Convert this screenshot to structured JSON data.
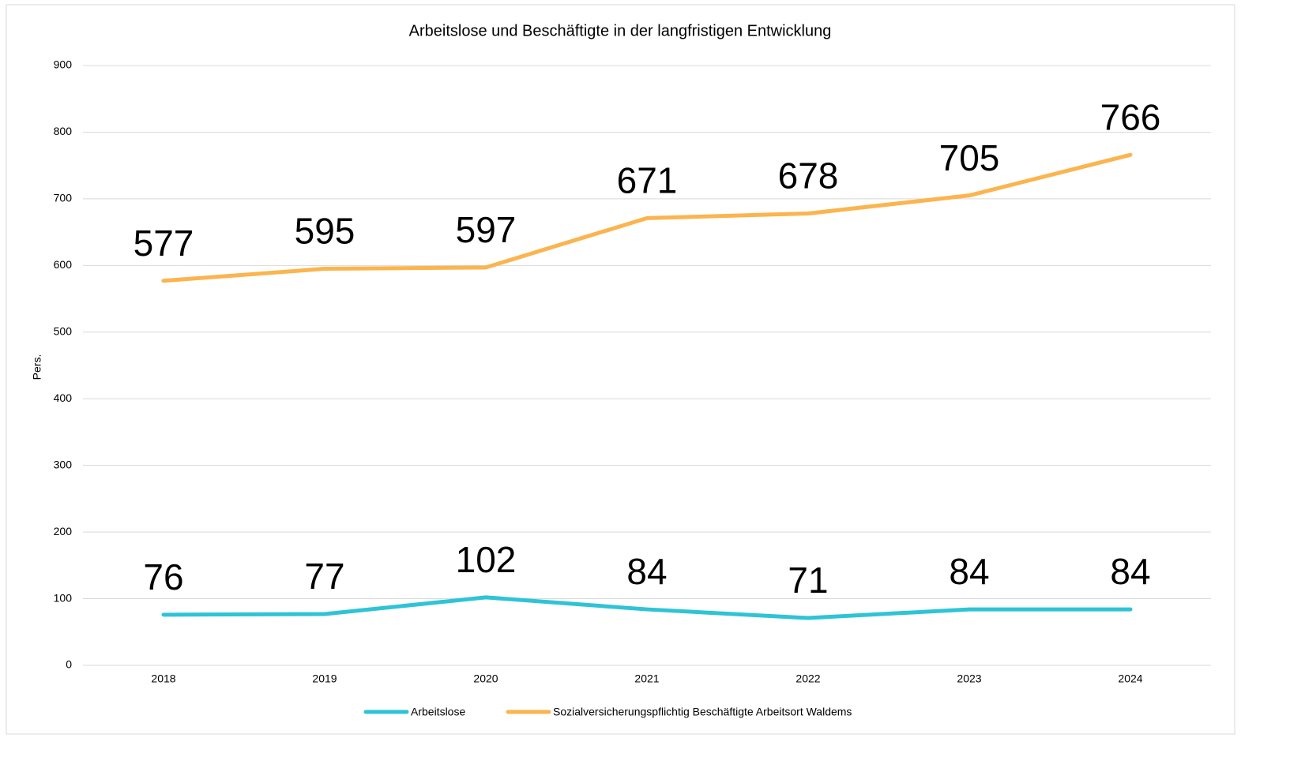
{
  "chart_data": {
    "type": "line",
    "title": "Arbeitslose und Beschäftigte in der langfristigen Entwicklung",
    "y_label": "Pers.",
    "categories": [
      "2018",
      "2019",
      "2020",
      "2021",
      "2022",
      "2023",
      "2024"
    ],
    "series": [
      {
        "name": "Arbeitslose",
        "color": "#2ec4d6",
        "values": [
          76,
          77,
          102,
          84,
          71,
          84,
          84
        ]
      },
      {
        "name": "Sozialversicherungspflichtig Beschäftigte Arbeitsort Waldems",
        "color": "#fbb44e",
        "values": [
          577,
          595,
          597,
          671,
          678,
          705,
          766
        ]
      }
    ],
    "ylim": [
      0,
      900
    ],
    "yticks": [
      0,
      100,
      200,
      300,
      400,
      500,
      600,
      700,
      800,
      900
    ],
    "grid": true,
    "legend": "bottom"
  }
}
